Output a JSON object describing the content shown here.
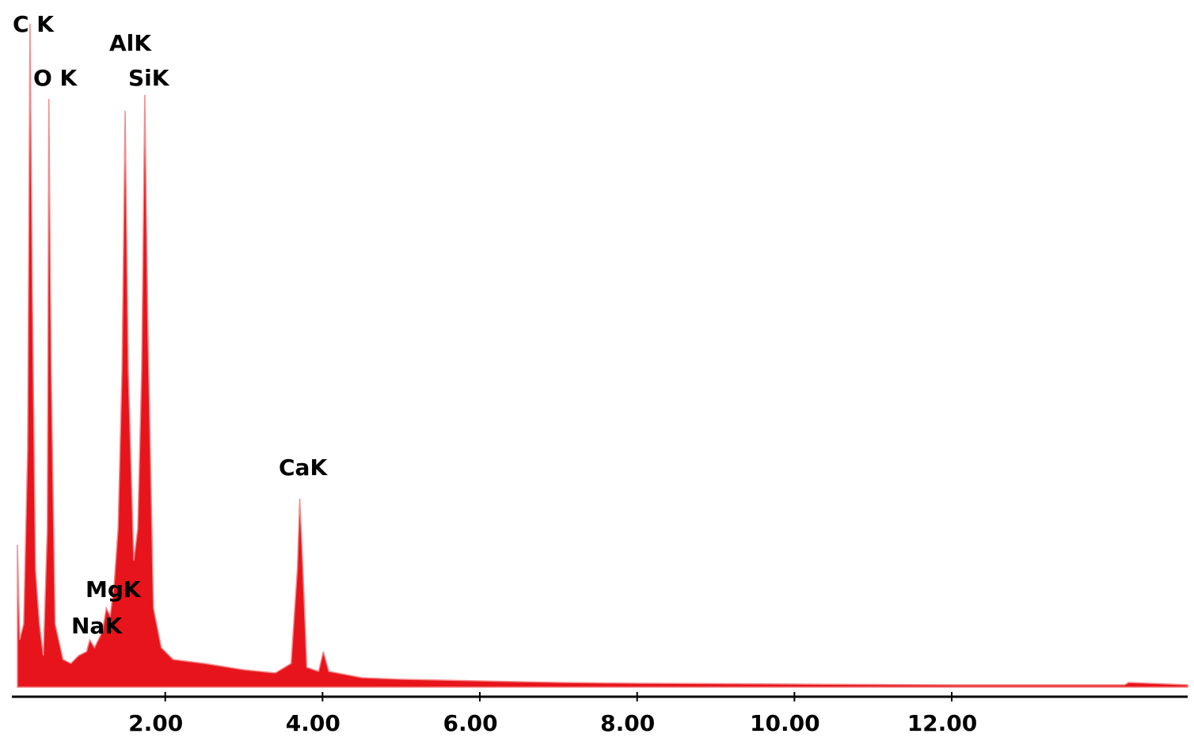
{
  "chart_data": {
    "type": "area",
    "x": [
      0.12,
      0.15,
      0.2,
      0.25,
      0.28,
      0.31,
      0.35,
      0.4,
      0.45,
      0.5,
      0.52,
      0.55,
      0.6,
      0.7,
      0.8,
      0.9,
      1.0,
      1.04,
      1.1,
      1.2,
      1.25,
      1.3,
      1.35,
      1.4,
      1.45,
      1.49,
      1.53,
      1.6,
      1.65,
      1.7,
      1.74,
      1.78,
      1.85,
      1.95,
      2.1,
      2.5,
      3.0,
      3.4,
      3.6,
      3.68,
      3.71,
      3.75,
      3.8,
      3.95,
      4.01,
      4.08,
      4.5,
      5.0,
      6.0,
      7.0,
      8.0,
      10.0,
      12.0,
      14.2,
      14.25,
      15.0
    ],
    "values": [
      180,
      60,
      80,
      300,
      838,
      500,
      150,
      80,
      40,
      200,
      743,
      400,
      80,
      35,
      30,
      40,
      45,
      60,
      50,
      70,
      100,
      90,
      130,
      200,
      400,
      728,
      400,
      160,
      200,
      400,
      748,
      450,
      100,
      50,
      35,
      30,
      22,
      18,
      30,
      150,
      238,
      150,
      25,
      20,
      45,
      20,
      12,
      10,
      8,
      6,
      5,
      4,
      3,
      3,
      6,
      3
    ],
    "color": "#e8141c",
    "xlim": [
      0.05,
      15
    ],
    "xticks": [
      {
        "value": 2,
        "label": "2.00"
      },
      {
        "value": 4,
        "label": "4.00"
      },
      {
        "value": 6,
        "label": "6.00"
      },
      {
        "value": 8,
        "label": "8.00"
      },
      {
        "value": 10,
        "label": "10.00"
      },
      {
        "value": 12,
        "label": "12.00"
      }
    ],
    "annotations": [
      "C K",
      "O K",
      "AlK",
      "SiK",
      "MgK",
      "NaK",
      "CaK"
    ]
  }
}
